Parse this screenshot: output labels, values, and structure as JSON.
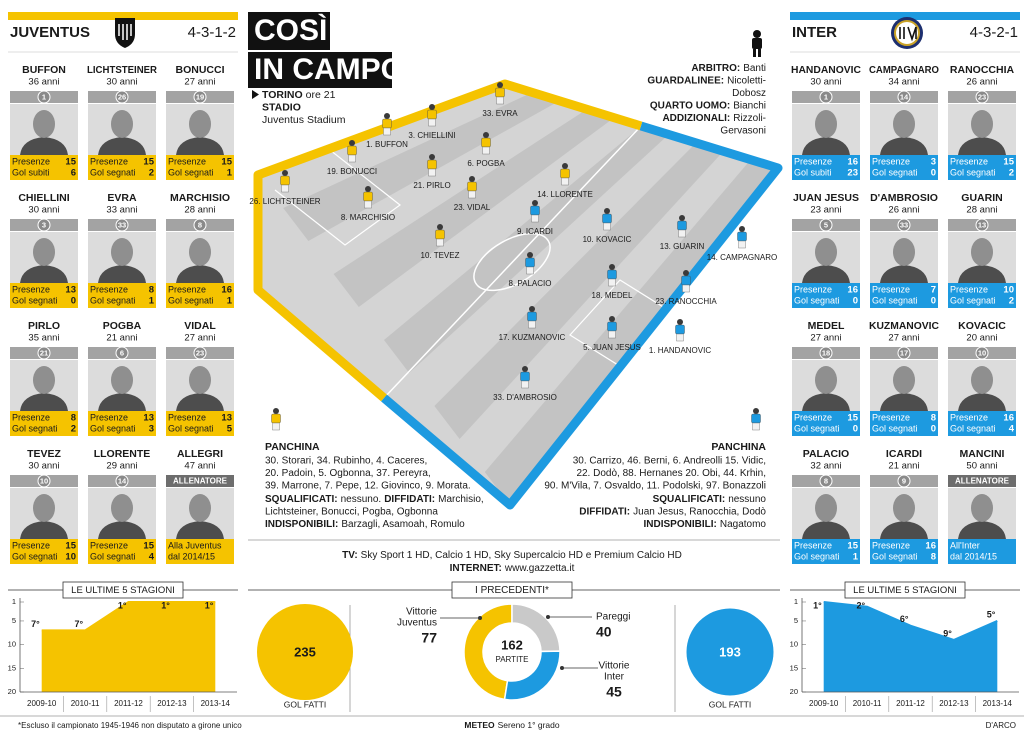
{
  "header": {
    "title_lines": [
      "COSÌ",
      "IN CAMPO"
    ]
  },
  "match": {
    "lines": [
      [
        {
          "text": "TORINO",
          "bold": true
        },
        {
          "text": "ore 21"
        }
      ],
      [
        {
          "text": "STADIO",
          "bold": true
        }
      ],
      [
        {
          "text": "Juventus Stadium"
        }
      ]
    ]
  },
  "officials": {
    "lines": [
      [
        {
          "text": "ARBITRO:",
          "bold": true
        },
        {
          "text": "Banti"
        }
      ],
      [
        {
          "text": "GUARDALINEE:",
          "bold": true
        },
        {
          "text": "Nicoletti-"
        }
      ],
      [
        {
          "text": "Dobosz"
        }
      ],
      [
        {
          "text": "QUARTO UOMO:",
          "bold": true
        },
        {
          "text": "Bianchi"
        }
      ],
      [
        {
          "text": "ADDIZIONALI:",
          "bold": true
        },
        {
          "text": "Rizzoli-"
        }
      ],
      [
        {
          "text": "Gervasoni"
        }
      ]
    ]
  },
  "teams": [
    {
      "name": "JUVENTUS",
      "formation": "4-3-1-2",
      "color": "#f5c300",
      "stat_text_color": "#1a1a1a",
      "players": [
        {
          "name": "BUFFON",
          "age": "36 anni",
          "number": 1,
          "stats": [
            {
              "label": "Presenze",
              "value": 15
            },
            {
              "label": "Gol subiti",
              "value": 6
            }
          ]
        },
        {
          "name": "LICHTSTEINER",
          "age": "30 anni",
          "number": 26,
          "stats": [
            {
              "label": "Presenze",
              "value": 15
            },
            {
              "label": "Gol segnati",
              "value": 2
            }
          ]
        },
        {
          "name": "BONUCCI",
          "age": "27 anni",
          "number": 19,
          "stats": [
            {
              "label": "Presenze",
              "value": 15
            },
            {
              "label": "Gol segnati",
              "value": 1
            }
          ]
        },
        {
          "name": "CHIELLINI",
          "age": "30 anni",
          "number": 3,
          "stats": [
            {
              "label": "Presenze",
              "value": 13
            },
            {
              "label": "Gol segnati",
              "value": 0
            }
          ]
        },
        {
          "name": "EVRA",
          "age": "33 anni",
          "number": 33,
          "stats": [
            {
              "label": "Presenze",
              "value": 8
            },
            {
              "label": "Gol segnati",
              "value": 1
            }
          ]
        },
        {
          "name": "MARCHISIO",
          "age": "28 anni",
          "number": 8,
          "stats": [
            {
              "label": "Presenze",
              "value": 16
            },
            {
              "label": "Gol segnati",
              "value": 1
            }
          ]
        },
        {
          "name": "PIRLO",
          "age": "35 anni",
          "number": 21,
          "stats": [
            {
              "label": "Presenze",
              "value": 8
            },
            {
              "label": "Gol segnati",
              "value": 2
            }
          ]
        },
        {
          "name": "POGBA",
          "age": "21 anni",
          "number": 6,
          "stats": [
            {
              "label": "Presenze",
              "value": 13
            },
            {
              "label": "Gol segnati",
              "value": 3
            }
          ]
        },
        {
          "name": "VIDAL",
          "age": "27 anni",
          "number": 23,
          "stats": [
            {
              "label": "Presenze",
              "value": 13
            },
            {
              "label": "Gol segnati",
              "value": 5
            }
          ]
        },
        {
          "name": "TEVEZ",
          "age": "30 anni",
          "number": 10,
          "stats": [
            {
              "label": "Presenze",
              "value": 15
            },
            {
              "label": "Gol segnati",
              "value": 10
            }
          ]
        },
        {
          "name": "LLORENTE",
          "age": "29 anni",
          "number": 14,
          "stats": [
            {
              "label": "Presenze",
              "value": 15
            },
            {
              "label": "Gol segnati",
              "value": 4
            }
          ]
        }
      ],
      "coach": {
        "name": "ALLEGRI",
        "age": "47 anni",
        "role": "ALLENATORE",
        "note": [
          "Alla Juventus",
          "dal 2014/15"
        ]
      },
      "lineup": [
        "1. BUFFON",
        "3. CHIELLINI",
        "33. EVRA",
        "19. BONUCCI",
        "6. POGBA",
        "26. LICHTSTEINER",
        "21. PIRLO",
        "8. MARCHISIO",
        "23. VIDAL",
        "14. LLORENTE",
        "10. TEVEZ"
      ],
      "bench": {
        "label": "PANCHINA",
        "lines": [
          "30. Storari, 34. Rubinho, 4. Caceres,",
          "20. Padoin, 5. Ogbonna, 37. Pereyra,",
          "39. Marrone, 7. Pepe, 12. Giovinco, 9. Morata."
        ]
      },
      "notes": [
        [
          {
            "text": "SQUALIFICATI:",
            "bold": true
          },
          {
            "text": "nessuno."
          },
          {
            "text": "DIFFIDATI:",
            "bold": true
          },
          {
            "text": "Marchisio,"
          }
        ],
        [
          {
            "text": "Lichtsteiner, Bonucci, Pogba, Ogbonna"
          }
        ],
        [
          {
            "text": "INDISPONIBILI:",
            "bold": true
          },
          {
            "text": "Barzagli, Asamoah, Romulo"
          }
        ]
      ],
      "seasons": {
        "type": "area",
        "title": "LE ULTIME 5 STAGIONI",
        "categories": [
          "2009-10",
          "2010-11",
          "2011-12",
          "2012-13",
          "2013-14"
        ],
        "values": [
          7,
          7,
          1,
          1,
          1
        ],
        "value_labels": [
          "7°",
          "7°",
          "1°",
          "1°",
          "1°"
        ],
        "ylim": [
          1,
          20
        ],
        "yticks": [
          1,
          5,
          10,
          15,
          20
        ],
        "y_reversed": true,
        "color": "#f5c300"
      },
      "goals": {
        "value": 235,
        "label": "GOL FATTI",
        "color": "#f5c300"
      }
    },
    {
      "name": "INTER",
      "formation": "4-3-2-1",
      "color": "#1d9ae0",
      "stat_text_color": "#ffffff",
      "players": [
        {
          "name": "HANDANOVIC",
          "age": "30 anni",
          "number": 1,
          "stats": [
            {
              "label": "Presenze",
              "value": 16
            },
            {
              "label": "Gol subiti",
              "value": 23
            }
          ]
        },
        {
          "name": "CAMPAGNARO",
          "age": "34 anni",
          "number": 14,
          "stats": [
            {
              "label": "Presenze",
              "value": 3
            },
            {
              "label": "Gol segnati",
              "value": 0
            }
          ]
        },
        {
          "name": "RANOCCHIA",
          "age": "26 anni",
          "number": 23,
          "stats": [
            {
              "label": "Presenze",
              "value": 15
            },
            {
              "label": "Gol segnati",
              "value": 2
            }
          ]
        },
        {
          "name": "JUAN JESUS",
          "age": "23 anni",
          "number": 5,
          "stats": [
            {
              "label": "Presenze",
              "value": 16
            },
            {
              "label": "Gol segnati",
              "value": 0
            }
          ]
        },
        {
          "name": "D'AMBROSIO",
          "age": "26 anni",
          "number": 33,
          "stats": [
            {
              "label": "Presenze",
              "value": 7
            },
            {
              "label": "Gol segnati",
              "value": 0
            }
          ]
        },
        {
          "name": "GUARIN",
          "age": "28 anni",
          "number": 13,
          "stats": [
            {
              "label": "Presenze",
              "value": 10
            },
            {
              "label": "Gol segnati",
              "value": 2
            }
          ]
        },
        {
          "name": "MEDEL",
          "age": "27 anni",
          "number": 18,
          "stats": [
            {
              "label": "Presenze",
              "value": 15
            },
            {
              "label": "Gol segnati",
              "value": 0
            }
          ]
        },
        {
          "name": "KUZMANOVIC",
          "age": "27 anni",
          "number": 17,
          "stats": [
            {
              "label": "Presenze",
              "value": 8
            },
            {
              "label": "Gol segnati",
              "value": 0
            }
          ]
        },
        {
          "name": "KOVACIC",
          "age": "20 anni",
          "number": 10,
          "stats": [
            {
              "label": "Presenze",
              "value": 16
            },
            {
              "label": "Gol segnati",
              "value": 4
            }
          ]
        },
        {
          "name": "PALACIO",
          "age": "32 anni",
          "number": 8,
          "stats": [
            {
              "label": "Presenze",
              "value": 15
            },
            {
              "label": "Gol segnati",
              "value": 1
            }
          ]
        },
        {
          "name": "ICARDI",
          "age": "21 anni",
          "number": 9,
          "stats": [
            {
              "label": "Presenze",
              "value": 16
            },
            {
              "label": "Gol segnati",
              "value": 8
            }
          ]
        }
      ],
      "coach": {
        "name": "MANCINI",
        "age": "50 anni",
        "role": "ALLENATORE",
        "note": [
          "All'Inter",
          "dal 2014/15"
        ]
      },
      "lineup": [
        "9. ICARDI",
        "10. KOVACIC",
        "13. GUARIN",
        "14. CAMPAGNARO",
        "8. PALACIO",
        "18. MEDEL",
        "23. RANOCCHIA",
        "17. KUZMANOVIC",
        "5. JUAN JESUS",
        "1. HANDANOVIC",
        "33. D'AMBROSIO"
      ],
      "bench": {
        "label": "PANCHINA",
        "lines": [
          "30. Carrizo, 46. Berni, 6. Andreolli 15. Vidic,",
          "22. Dodò, 88. Hernanes 20. Obi, 44. Krhin,",
          "90. M'Vila, 7. Osvaldo, 11. Podolski, 97. Bonazzoli"
        ]
      },
      "notes": [
        [
          {
            "text": "SQUALIFICATI:",
            "bold": true
          },
          {
            "text": "nessuno"
          }
        ],
        [
          {
            "text": "DIFFIDATI:",
            "bold": true
          },
          {
            "text": "Juan Jesus, Ranocchia, Dodò"
          }
        ],
        [
          {
            "text": "INDISPONIBILI:",
            "bold": true
          },
          {
            "text": "Nagatomo"
          }
        ]
      ],
      "seasons": {
        "type": "area",
        "title": "LE ULTIME 5 STAGIONI",
        "categories": [
          "2009-10",
          "2010-11",
          "2011-12",
          "2012-13",
          "2013-14"
        ],
        "values": [
          1,
          2,
          6,
          9,
          5
        ],
        "value_labels": [
          "1°",
          "2°",
          "6°",
          "9°",
          "5°"
        ],
        "ylim": [
          1,
          20
        ],
        "yticks": [
          1,
          5,
          10,
          15,
          20
        ],
        "y_reversed": true,
        "color": "#1d9ae0"
      },
      "goals": {
        "value": 193,
        "label": "GOL FATTI",
        "color": "#1d9ae0"
      }
    }
  ],
  "broadcast": {
    "lines": [
      [
        {
          "text": "TV:",
          "bold": true
        },
        {
          "text": "Sky Sport 1 HD,  Calcio 1 HD, Sky Supercalcio HD e Premium Calcio HD"
        }
      ],
      [
        {
          "text": "INTERNET:",
          "bold": true
        },
        {
          "text": "www.gazzetta.it"
        }
      ]
    ]
  },
  "precedenti": {
    "type": "donut",
    "title": "I PRECEDENTI*",
    "total": 162,
    "total_label": "PARTITE",
    "segments": [
      {
        "name_lines": [
          "Vittorie",
          "Juventus"
        ],
        "value": 77,
        "color": "#f5c300"
      },
      {
        "name_lines": [
          "Pareggi"
        ],
        "value": 40,
        "color": "#c9c9c9"
      },
      {
        "name_lines": [
          "Vittorie",
          "Inter"
        ],
        "value": 45,
        "color": "#1d9ae0"
      }
    ]
  },
  "footer": {
    "note": "*Escluso il campionato 1945-1946 non disputato a girone unico",
    "weather": [
      {
        "text": "METEO",
        "bold": true
      },
      {
        "text": "Sereno 1° grado"
      }
    ],
    "credit": "D'ARCO"
  }
}
